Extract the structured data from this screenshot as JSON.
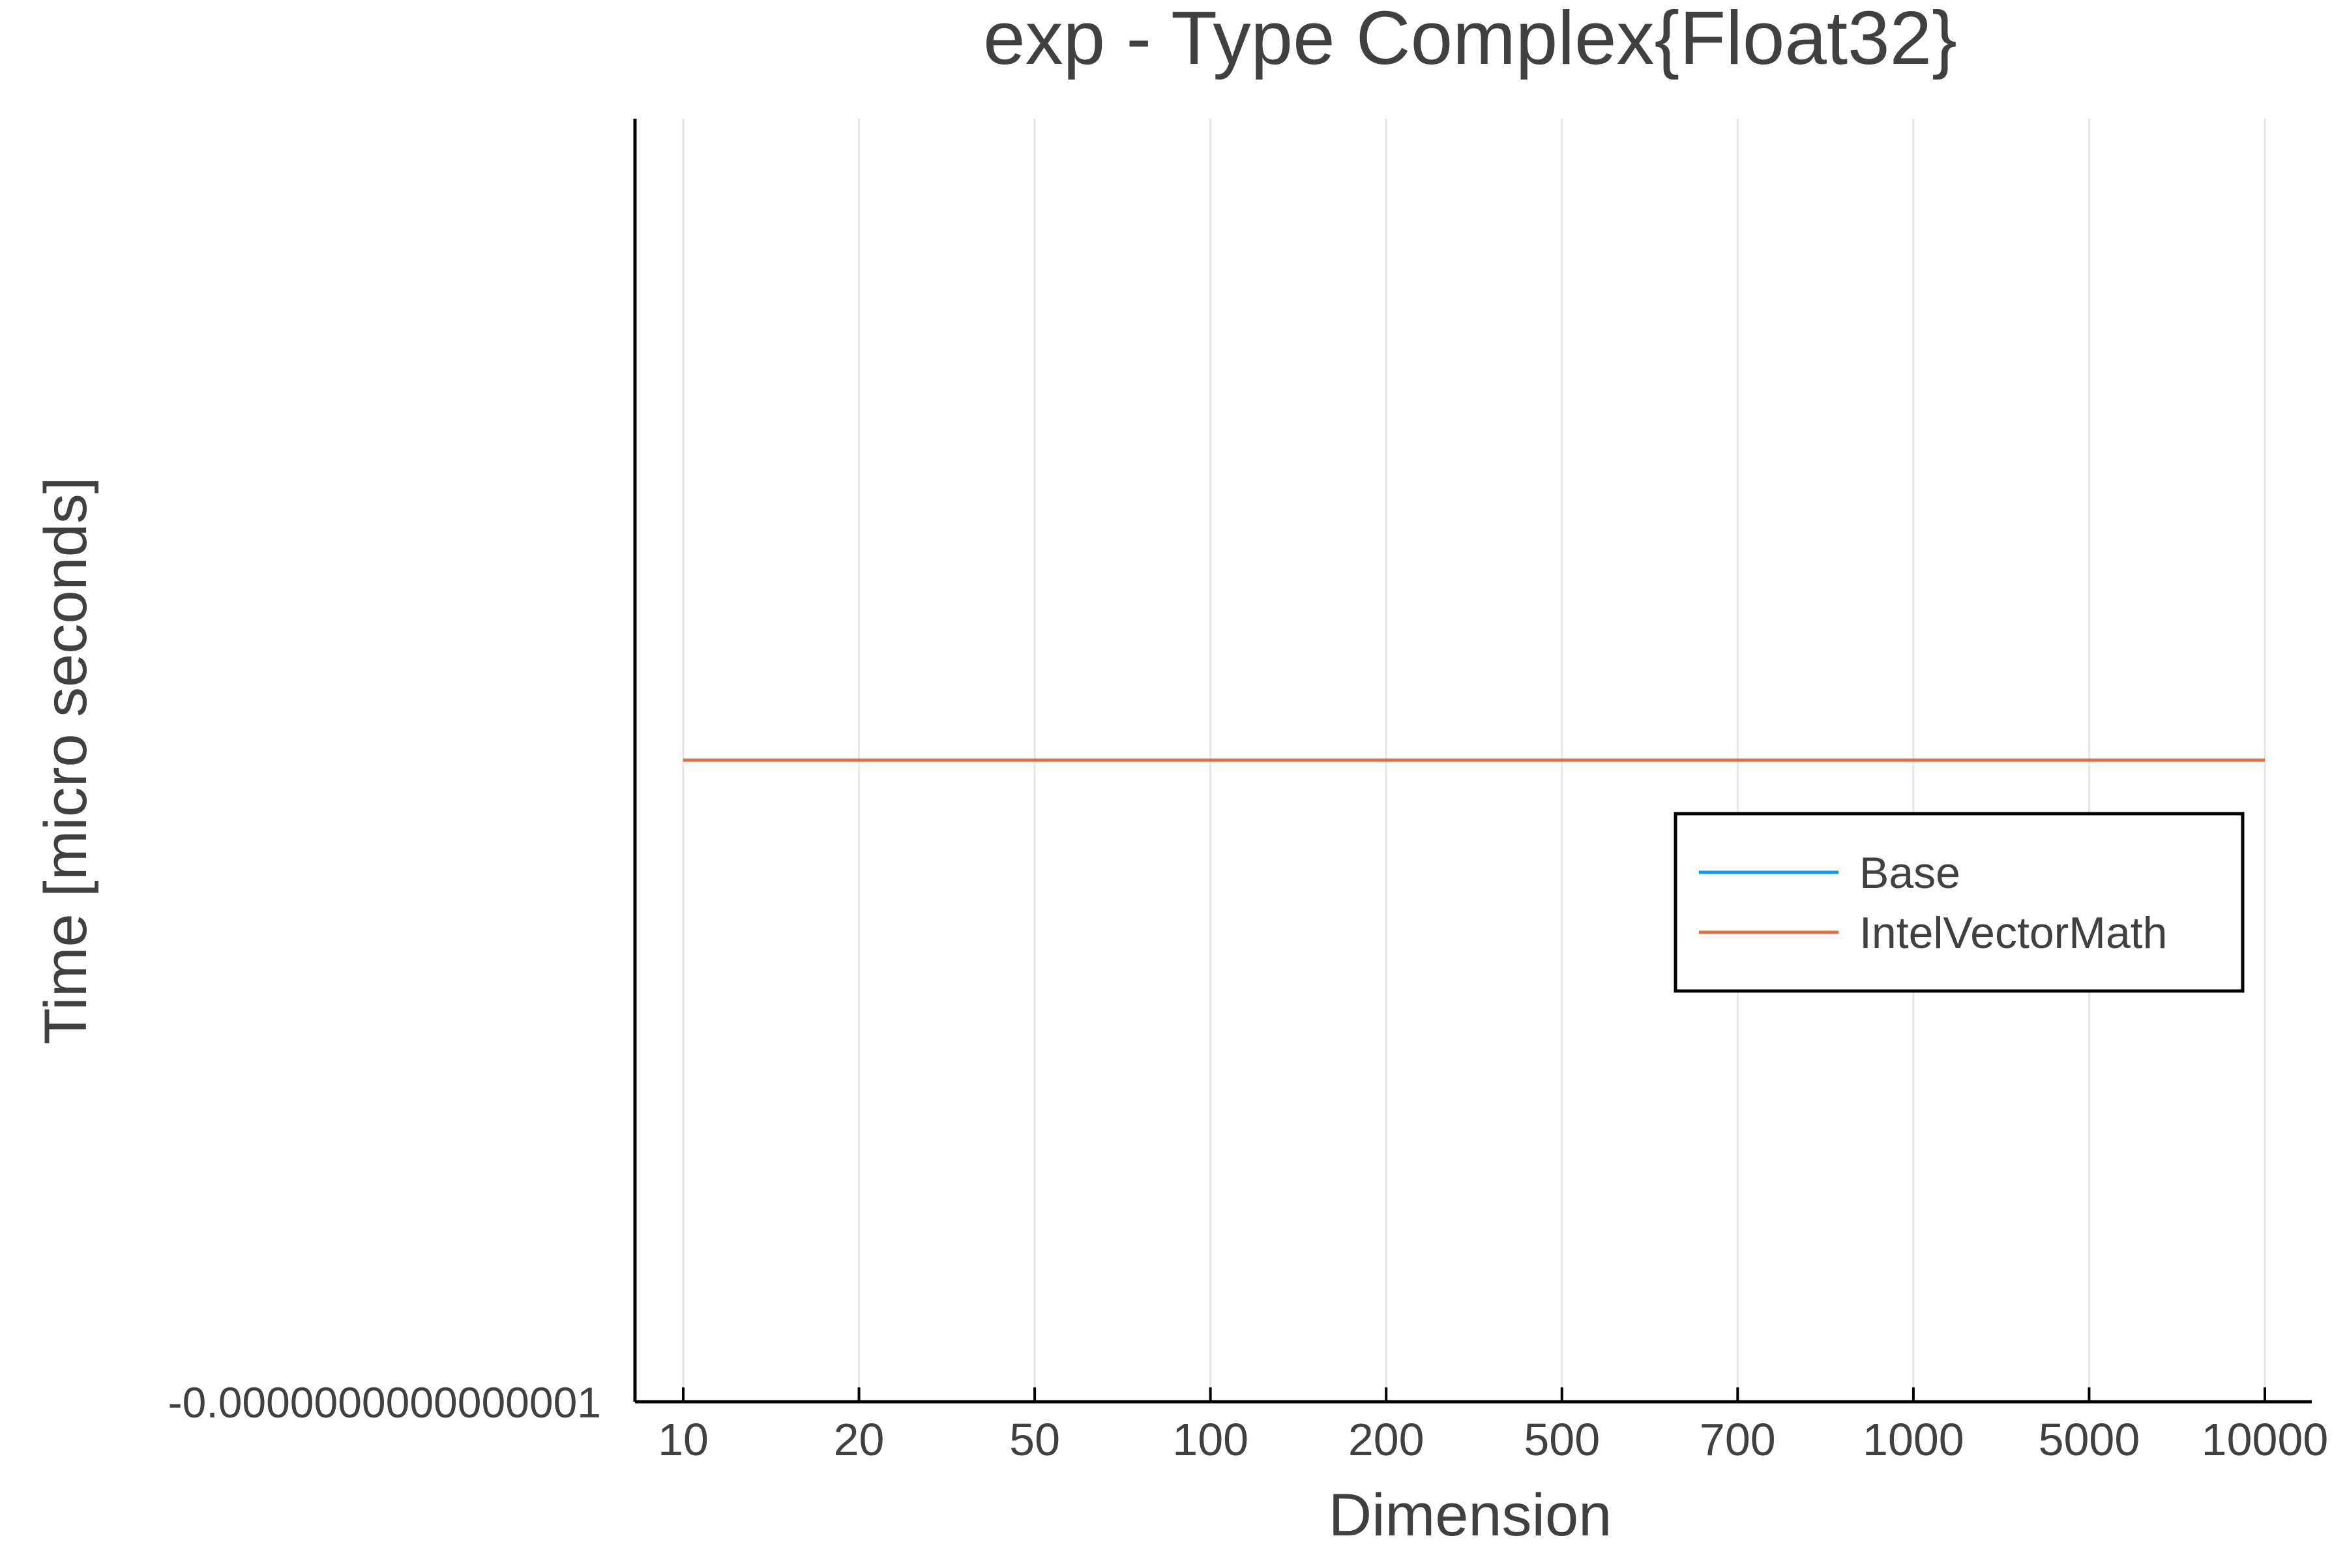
{
  "chart_data": {
    "type": "line",
    "title": "exp - Type Complex{Float32}",
    "xlabel": "Dimension",
    "ylabel": "Time [micro seconds]",
    "categories": [
      "10",
      "20",
      "50",
      "100",
      "200",
      "500",
      "700",
      "1000",
      "5000",
      "10000"
    ],
    "x_scale": "categorical",
    "y_tick_labels": [
      "-0.0000000000000001"
    ],
    "grid": "vertical",
    "legend_position": "right",
    "series": [
      {
        "name": "Base",
        "color": "#009af9",
        "values": [
          0,
          0,
          0,
          0,
          0,
          0,
          0,
          0,
          0,
          0
        ]
      },
      {
        "name": "IntelVectorMath",
        "color": "#e26f46",
        "values": [
          0,
          0,
          0,
          0,
          0,
          0,
          0,
          0,
          0,
          0
        ]
      }
    ]
  }
}
